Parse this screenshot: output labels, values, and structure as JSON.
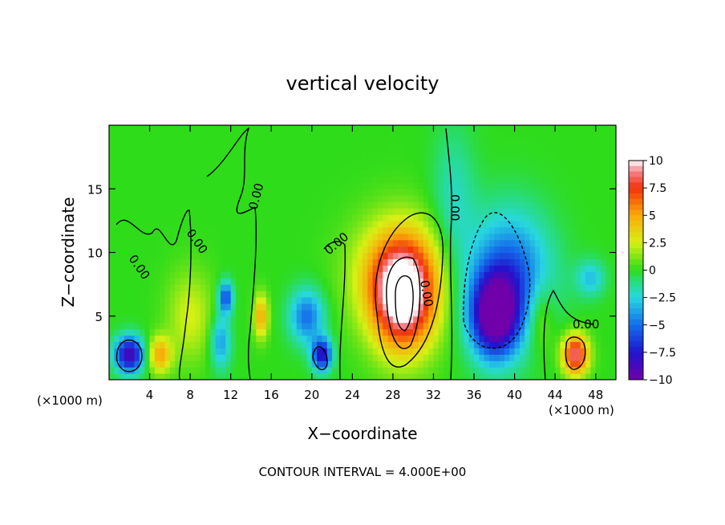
{
  "chart_data": {
    "type": "heatmap",
    "title": "vertical velocity",
    "xlabel": "X−coordinate",
    "ylabel": "Z−coordinate",
    "x_unit_left": "(×1000 m)",
    "x_unit_right": "(×1000 m)",
    "footer": "CONTOUR INTERVAL = 4.000E+00",
    "xlim": [
      0,
      50
    ],
    "ylim": [
      0,
      20
    ],
    "x_ticks": [
      4,
      8,
      12,
      16,
      20,
      24,
      28,
      32,
      36,
      40,
      44,
      48
    ],
    "y_ticks": [
      5,
      10,
      15
    ],
    "contour_label": "0.00",
    "colorbar": {
      "range": [
        -10,
        10
      ],
      "tick_values": [
        10,
        7.5,
        5,
        2.5,
        0,
        -2.5,
        -5,
        -7.5,
        -10
      ],
      "tick_labels": [
        "10",
        "7.5",
        "5",
        "2.5",
        "0",
        "−2.5",
        "−5",
        "−7.5",
        "−10"
      ]
    },
    "features": [
      {
        "x": 29,
        "z": 6.5,
        "sx": 2.2,
        "sz": 3.0,
        "value": 10
      },
      {
        "x": 28.5,
        "z": 8.5,
        "sx": 3.2,
        "sz": 3.0,
        "value": 4
      },
      {
        "x": 38,
        "z": 5,
        "sx": 1.6,
        "sz": 2.2,
        "value": -10
      },
      {
        "x": 39.5,
        "z": 8,
        "sx": 2.8,
        "sz": 3.5,
        "value": -6
      },
      {
        "x": 2,
        "z": 2,
        "sx": 1.0,
        "sz": 1.0,
        "value": -9
      },
      {
        "x": 5,
        "z": 2,
        "sx": 0.8,
        "sz": 1.0,
        "value": 5
      },
      {
        "x": 46,
        "z": 2,
        "sx": 0.9,
        "sz": 1.1,
        "value": 9
      },
      {
        "x": 21,
        "z": 2,
        "sx": 0.7,
        "sz": 0.9,
        "value": -8
      },
      {
        "x": 19.5,
        "z": 5,
        "sx": 1.2,
        "sz": 1.5,
        "value": -5
      },
      {
        "x": 15,
        "z": 5,
        "sx": 0.5,
        "sz": 1.2,
        "value": 5
      },
      {
        "x": 11,
        "z": 3,
        "sx": 0.7,
        "sz": 1.5,
        "value": -4
      },
      {
        "x": 11.5,
        "z": 6.5,
        "sx": 0.5,
        "sz": 0.9,
        "value": -6
      },
      {
        "x": 8,
        "z": 5,
        "sx": 1.6,
        "sz": 2.5,
        "value": 2.5
      },
      {
        "x": 42.5,
        "z": 5,
        "sx": 1.0,
        "sz": 2.0,
        "value": 2.5
      },
      {
        "x": 47.5,
        "z": 8,
        "sx": 1.0,
        "sz": 1.0,
        "value": -3
      },
      {
        "x": 34,
        "z": 14,
        "sx": 1.5,
        "sz": 4.0,
        "value": -2
      }
    ]
  }
}
